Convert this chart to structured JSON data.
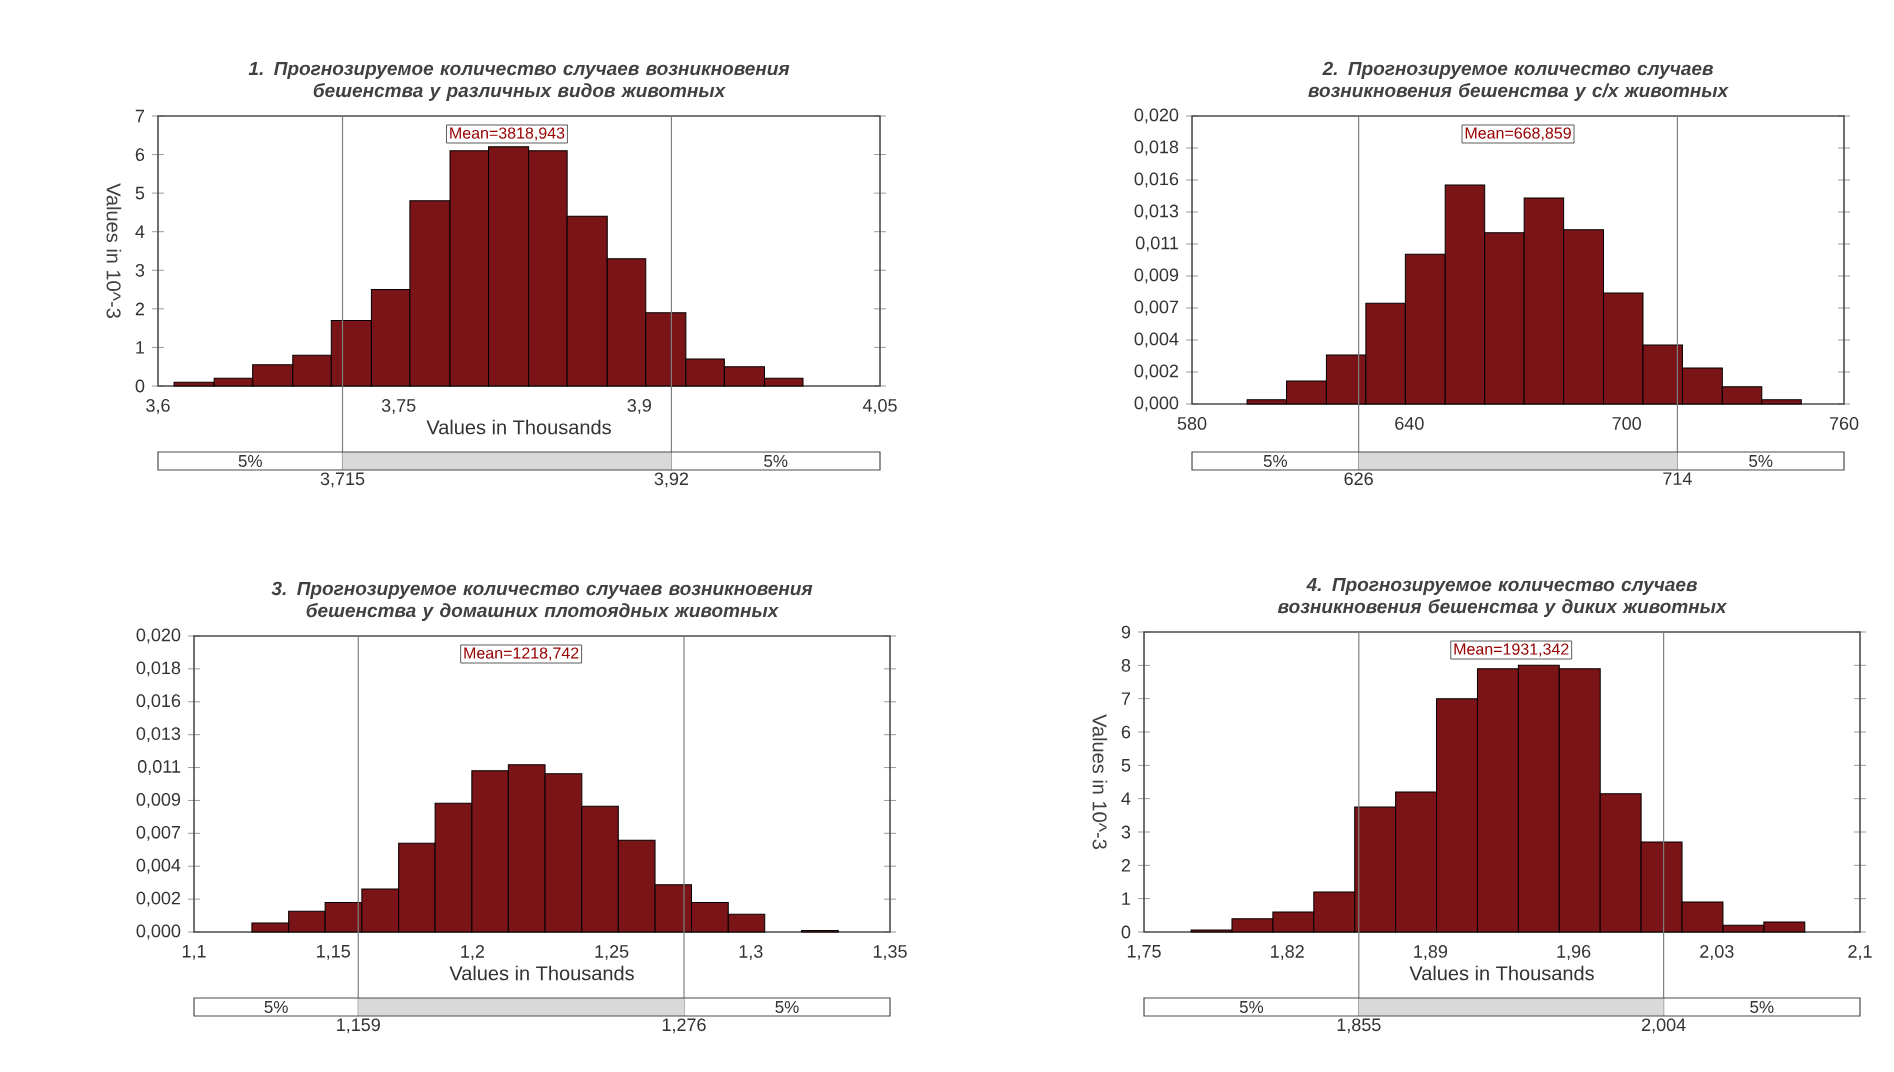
{
  "chart_data": [
    {
      "type": "histogram",
      "title": "1. Прогнозируемое количество случаев возникновения бешенства у различных видов животных",
      "xlabel": "Values in Thousands",
      "ylabel": "Values in 10^-3",
      "color": "#7b1416",
      "bins": [
        3.61,
        3.635,
        3.659,
        3.684,
        3.708,
        3.733,
        3.757,
        3.782,
        3.806,
        3.831,
        3.855,
        3.88,
        3.904,
        3.929,
        3.953,
        3.978,
        4.002
      ],
      "values": [
        0.1,
        0.2,
        0.55,
        0.8,
        1.7,
        2.5,
        4.8,
        6.1,
        6.2,
        6.1,
        4.4,
        3.3,
        1.9,
        0.7,
        0.5,
        0.2
      ],
      "xlim": [
        3.6,
        4.05
      ],
      "xticks": [
        {
          "value": 3.6,
          "label": "3,6"
        },
        {
          "value": 3.75,
          "label": "3,75"
        },
        {
          "value": 3.9,
          "label": "3,9"
        },
        {
          "value": 4.05,
          "label": "4,05"
        }
      ],
      "ylim": [
        0,
        7
      ],
      "yticks": [
        0,
        1,
        2,
        3,
        4,
        5,
        6,
        7
      ],
      "ref_lines": [
        {
          "axis": "x",
          "value": 3.715,
          "label": "3,715",
          "color": "#808080"
        },
        {
          "axis": "x",
          "value": 3.92,
          "label": "3,92",
          "color": "#808080"
        }
      ],
      "annotations": [
        "Mean=3818,943",
        "5%",
        "5%"
      ]
    },
    {
      "type": "histogram",
      "title": "2. Прогнозируемое количество случаев возникновения бешенства у с/х животных",
      "color": "#7b1416",
      "bins": [
        595.2,
        606.1,
        617.1,
        628.0,
        638.9,
        649.9,
        660.8,
        671.7,
        682.6,
        693.6,
        704.5,
        715.4,
        726.4,
        737.3,
        748.2
      ],
      "values": [
        0.0003,
        0.0016,
        0.0034,
        0.007,
        0.0104,
        0.0152,
        0.0119,
        0.0143,
        0.0121,
        0.0077,
        0.0041,
        0.0025,
        0.0012,
        0.0003
      ],
      "xlim": [
        580,
        760
      ],
      "xticks": [
        580,
        640,
        700,
        760
      ],
      "ylim": [
        0,
        0.02
      ],
      "yticks": [
        {
          "value": 0,
          "label": "0,000"
        },
        {
          "value": 0.002222,
          "label": "0,002"
        },
        {
          "value": 0.004444,
          "label": "0,004"
        },
        {
          "value": 0.006667,
          "label": "0,007"
        },
        {
          "value": 0.008889,
          "label": "0,009"
        },
        {
          "value": 0.011111,
          "label": "0,011"
        },
        {
          "value": 0.013333,
          "label": "0,013"
        },
        {
          "value": 0.015556,
          "label": "0,016"
        },
        {
          "value": 0.017778,
          "label": "0,018"
        },
        {
          "value": 0.02,
          "label": "0,020"
        }
      ],
      "ref_lines": [
        {
          "axis": "x",
          "value": 626,
          "label": "626",
          "color": "#808080"
        },
        {
          "axis": "x",
          "value": 714,
          "label": "714",
          "color": "#808080"
        }
      ],
      "annotations": [
        "Mean=668,859",
        "5%",
        "5%"
      ]
    },
    {
      "type": "histogram",
      "title": "3. Прогнозируемое количество случаев возникновения бешенства у домашних плотоядных животных",
      "xlabel": "Values in Thousands",
      "color": "#7b1416",
      "bins": [
        1.1208,
        1.134,
        1.1471,
        1.1603,
        1.1735,
        1.1866,
        1.1998,
        1.2129,
        1.2261,
        1.2393,
        1.2524,
        1.2656,
        1.2787,
        1.2919,
        1.305,
        1.3182,
        1.3314
      ],
      "values": [
        0.0006,
        0.0014,
        0.002,
        0.0029,
        0.006,
        0.0087,
        0.0109,
        0.0113,
        0.0107,
        0.0085,
        0.0062,
        0.0032,
        0.002,
        0.0012,
        0,
        0.0001
      ],
      "xlim": [
        1.1,
        1.35
      ],
      "xticks": [
        {
          "value": 1.1,
          "label": "1,1"
        },
        {
          "value": 1.15,
          "label": "1,15"
        },
        {
          "value": 1.2,
          "label": "1,2"
        },
        {
          "value": 1.25,
          "label": "1,25"
        },
        {
          "value": 1.3,
          "label": "1,3"
        },
        {
          "value": 1.35,
          "label": "1,35"
        }
      ],
      "ylim": [
        0,
        0.02
      ],
      "yticks": [
        {
          "value": 0,
          "label": "0,000"
        },
        {
          "value": 0.002222,
          "label": "0,002"
        },
        {
          "value": 0.004444,
          "label": "0,004"
        },
        {
          "value": 0.006667,
          "label": "0,007"
        },
        {
          "value": 0.008889,
          "label": "0,009"
        },
        {
          "value": 0.011111,
          "label": "0,011"
        },
        {
          "value": 0.013333,
          "label": "0,013"
        },
        {
          "value": 0.015556,
          "label": "0,016"
        },
        {
          "value": 0.017778,
          "label": "0,018"
        },
        {
          "value": 0.02,
          "label": "0,020"
        }
      ],
      "ref_lines": [
        {
          "axis": "x",
          "value": 1.159,
          "label": "1,159",
          "color": "#808080"
        },
        {
          "axis": "x",
          "value": 1.276,
          "label": "1,276",
          "color": "#808080"
        }
      ],
      "annotations": [
        "Mean=1218,742",
        "5%",
        "5%"
      ]
    },
    {
      "type": "histogram",
      "title": "4. Прогнозируемое количество случаев возникновения бешенства у диких животных",
      "xlabel": "Values in Thousands",
      "ylabel": "Values in 10^-3",
      "color": "#7b1416",
      "bins": [
        1.773,
        1.793,
        1.813,
        1.833,
        1.853,
        1.873,
        1.893,
        1.913,
        1.933,
        1.953,
        1.973,
        1.993,
        2.013,
        2.033,
        2.053,
        2.073
      ],
      "values": [
        0.06,
        0.4,
        0.6,
        1.2,
        3.75,
        4.2,
        7.0,
        7.9,
        8.0,
        7.9,
        4.15,
        2.7,
        0.9,
        0.2,
        0.3
      ],
      "xlim": [
        1.75,
        2.1
      ],
      "xticks": [
        {
          "value": 1.75,
          "label": "1,75"
        },
        {
          "value": 1.82,
          "label": "1,82"
        },
        {
          "value": 1.89,
          "label": "1,89"
        },
        {
          "value": 1.96,
          "label": "1,96"
        },
        {
          "value": 2.03,
          "label": "2,03"
        },
        {
          "value": 2.1,
          "label": "2,1"
        }
      ],
      "ylim": [
        0,
        9
      ],
      "yticks": [
        0,
        1,
        2,
        3,
        4,
        5,
        6,
        7,
        8,
        9
      ],
      "ref_lines": [
        {
          "axis": "x",
          "value": 1.855,
          "label": "1,855",
          "color": "#808080"
        },
        {
          "axis": "x",
          "value": 2.004,
          "label": "2,004",
          "color": "#808080"
        }
      ],
      "annotations": [
        "Mean=1931,342",
        "5%",
        "5%"
      ]
    }
  ]
}
